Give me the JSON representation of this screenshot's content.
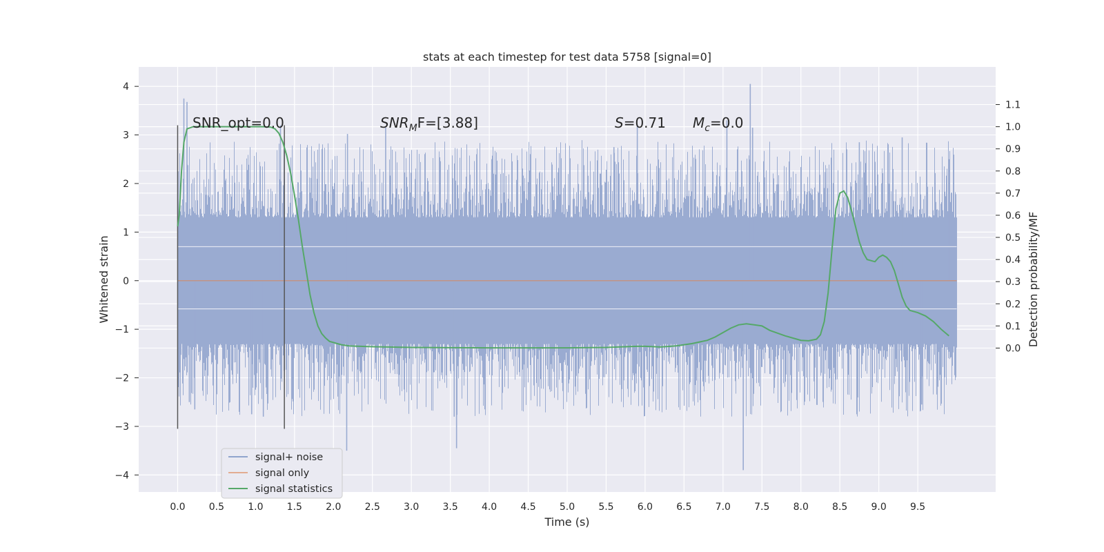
{
  "chart_data": {
    "type": "line",
    "title": "stats at each timestep for test data 5758 [signal=0]",
    "xlabel": "Time (s)",
    "ylabel": "Whitened strain",
    "ylabel_right": "Detection probability/MF",
    "xlim": [
      -0.5,
      10.5
    ],
    "ylim": [
      -4.35,
      4.4
    ],
    "ylim_right": [
      -0.65,
      1.27
    ],
    "x_ticks": [
      "0.0",
      "0.5",
      "1.0",
      "1.5",
      "2.0",
      "2.5",
      "3.0",
      "3.5",
      "4.0",
      "4.5",
      "5.0",
      "5.5",
      "6.0",
      "6.5",
      "7.0",
      "7.5",
      "8.0",
      "8.5",
      "9.0",
      "9.5"
    ],
    "y_ticks": [
      "4",
      "3",
      "2",
      "1",
      "0",
      "−1",
      "−2",
      "−3",
      "−4"
    ],
    "y_right_ticks": [
      "1.1",
      "1.0",
      "0.9",
      "0.8",
      "0.7",
      "0.6",
      "0.5",
      "0.4",
      "0.3",
      "0.2",
      "0.1",
      "0.0"
    ],
    "grid": true,
    "legend_placement": "lower-left",
    "annotations": {
      "snr_opt": "SNR_opt=0.0",
      "snr_mf_base": "SNR",
      "snr_mf_sub": "M",
      "snr_mf_rest": "F=[3.88]",
      "s_label": "S",
      "s_value": "=0.71",
      "mc_base": "M",
      "mc_sub": "c",
      "mc_value": "=0.0"
    },
    "vertical_markers": [
      {
        "x": 0.0,
        "y_range": [
          -3.05,
          3.2
        ]
      },
      {
        "x": 1.37,
        "y_range": [
          -3.05,
          3.2
        ]
      }
    ],
    "series": [
      {
        "name": "signal+ noise",
        "color": "#4c72b0",
        "kind": "noise",
        "x_range": [
          0.0,
          10.0
        ],
        "core_band": [
          -1.3,
          1.3
        ],
        "peaks": [
          {
            "x": 0.08,
            "y": 3.75
          },
          {
            "x": 0.12,
            "y": 3.68
          },
          {
            "x": 0.15,
            "y": -2.5
          },
          {
            "x": 0.22,
            "y": -2.65
          },
          {
            "x": 0.95,
            "y": -2.75
          },
          {
            "x": 1.1,
            "y": -2.8
          },
          {
            "x": 1.32,
            "y": 3.2
          },
          {
            "x": 2.17,
            "y": -3.5
          },
          {
            "x": 2.18,
            "y": 3.02
          },
          {
            "x": 2.67,
            "y": 3.15
          },
          {
            "x": 3.55,
            "y": -2.8
          },
          {
            "x": 3.58,
            "y": -3.45
          },
          {
            "x": 5.6,
            "y": 2.75
          },
          {
            "x": 5.9,
            "y": 3.2
          },
          {
            "x": 7.05,
            "y": 3.3
          },
          {
            "x": 7.26,
            "y": -3.9
          },
          {
            "x": 7.35,
            "y": 4.05
          },
          {
            "x": 7.38,
            "y": 3.15
          },
          {
            "x": 8.75,
            "y": 2.85
          },
          {
            "x": 9.3,
            "y": 2.95
          },
          {
            "x": 9.55,
            "y": -2.55
          },
          {
            "x": 9.9,
            "y": 2.5
          }
        ]
      },
      {
        "name": "signal only",
        "color": "#dd8452",
        "axis": "left",
        "x": [
          0.0,
          10.0
        ],
        "y": [
          0.0,
          0.0
        ]
      },
      {
        "name": "signal statistics",
        "color": "#55a868",
        "axis": "right",
        "x": [
          0.0,
          0.02,
          0.05,
          0.08,
          0.12,
          0.2,
          0.3,
          0.5,
          0.8,
          1.0,
          1.1,
          1.2,
          1.25,
          1.3,
          1.35,
          1.4,
          1.45,
          1.5,
          1.55,
          1.6,
          1.65,
          1.7,
          1.75,
          1.8,
          1.85,
          1.9,
          1.95,
          2.0,
          2.1,
          2.2,
          2.5,
          3.0,
          4.0,
          5.0,
          5.5,
          5.9,
          6.0,
          6.2,
          6.4,
          6.6,
          6.8,
          6.9,
          7.0,
          7.1,
          7.2,
          7.3,
          7.4,
          7.5,
          7.6,
          7.8,
          8.0,
          8.1,
          8.2,
          8.25,
          8.3,
          8.35,
          8.4,
          8.45,
          8.5,
          8.55,
          8.6,
          8.65,
          8.7,
          8.75,
          8.8,
          8.85,
          8.9,
          8.95,
          9.0,
          9.05,
          9.1,
          9.15,
          9.2,
          9.25,
          9.3,
          9.35,
          9.4,
          9.5,
          9.6,
          9.7,
          9.8,
          9.9
        ],
        "y": [
          0.55,
          0.6,
          0.8,
          0.93,
          0.99,
          1.0,
          1.0,
          1.0,
          1.0,
          1.0,
          1.0,
          0.998,
          0.99,
          0.97,
          0.93,
          0.87,
          0.79,
          0.69,
          0.58,
          0.46,
          0.35,
          0.24,
          0.16,
          0.1,
          0.065,
          0.045,
          0.03,
          0.025,
          0.015,
          0.01,
          0.006,
          0.003,
          0.001,
          0.001,
          0.003,
          0.008,
          0.008,
          0.005,
          0.01,
          0.02,
          0.035,
          0.05,
          0.07,
          0.09,
          0.105,
          0.11,
          0.105,
          0.1,
          0.08,
          0.055,
          0.035,
          0.033,
          0.04,
          0.06,
          0.12,
          0.25,
          0.45,
          0.63,
          0.7,
          0.71,
          0.68,
          0.62,
          0.55,
          0.48,
          0.43,
          0.4,
          0.395,
          0.39,
          0.41,
          0.42,
          0.41,
          0.39,
          0.35,
          0.29,
          0.23,
          0.19,
          0.17,
          0.16,
          0.145,
          0.12,
          0.085,
          0.055
        ]
      }
    ]
  }
}
